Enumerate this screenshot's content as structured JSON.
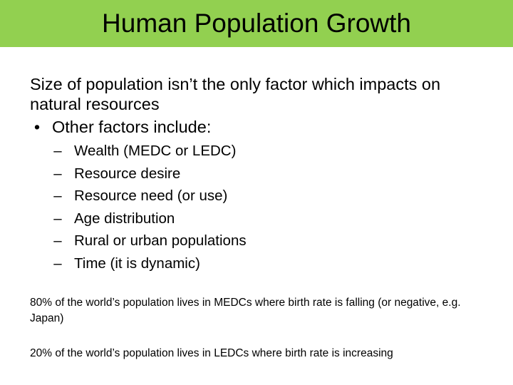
{
  "title": "Human Population Growth",
  "colors": {
    "title_bar": "#92d050",
    "text": "#000000",
    "background": "#ffffff"
  },
  "intro": "Size of population isn’t the only factor which impacts on natural resources",
  "bullet": {
    "marker": "•",
    "text": "Other factors include:"
  },
  "factors": [
    {
      "marker": "–",
      "text": "Wealth (MEDC or LEDC)"
    },
    {
      "marker": "–",
      "text": "Resource desire"
    },
    {
      "marker": "–",
      "text": "Resource need (or use)"
    },
    {
      "marker": "–",
      "text": "Age distribution"
    },
    {
      "marker": "–",
      "text": "Rural or urban populations"
    },
    {
      "marker": "–",
      "text": "Time (it is dynamic)"
    }
  ],
  "notes": [
    "80% of the world’s population lives in MEDCs where birth rate is falling (or negative, e.g. Japan)",
    "20% of the world’s population lives in LEDCs where birth rate is increasing"
  ]
}
